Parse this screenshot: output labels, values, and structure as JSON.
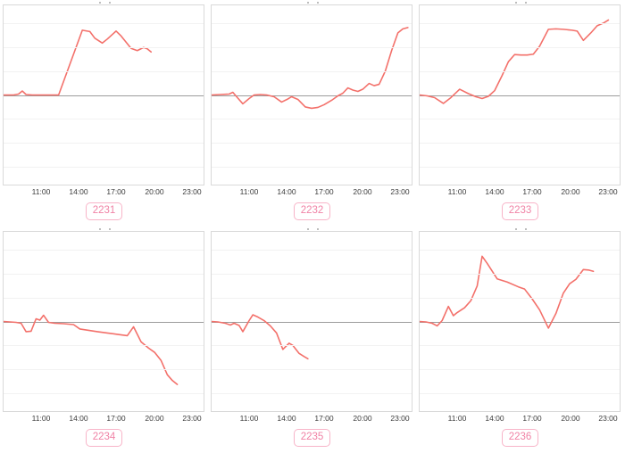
{
  "colors": {
    "line": "#f3706a",
    "zero_line": "#9b9b9b",
    "grid": "#f2f2f2",
    "panel_border": "#d9d9d9",
    "badge_border": "#f8b4c8",
    "badge_text": "#f082a5",
    "tick_text": "#3c3c3c"
  },
  "x_ticks": [
    "11:00",
    "14:00",
    "17:00",
    "20:00",
    "23:00"
  ],
  "chart_data": [
    {
      "type": "line",
      "title": "2231",
      "x_axis_ticks": [
        "11:00",
        "14:00",
        "17:00",
        "20:00",
        "23:00"
      ],
      "x_range_hours": [
        8,
        24
      ],
      "ylim": [
        -1,
        1
      ],
      "y_units": "relative (y axis unlabeled, zero baseline shown)",
      "x": [
        8,
        8.8,
        9.2,
        9.5,
        9.8,
        10.3,
        12.4,
        14.3,
        14.9,
        15.3,
        15.9,
        16.3,
        17.0,
        17.4,
        18.2,
        18.7,
        19.2,
        19.5,
        19.8
      ],
      "y": [
        0,
        0,
        0.01,
        0.045,
        0.005,
        0,
        0,
        0.73,
        0.715,
        0.64,
        0.585,
        0.63,
        0.72,
        0.665,
        0.525,
        0.5,
        0.535,
        0.52,
        0.485
      ]
    },
    {
      "type": "line",
      "title": "2232",
      "x_axis_ticks": [
        "11:00",
        "14:00",
        "17:00",
        "20:00",
        "23:00"
      ],
      "x_range_hours": [
        8,
        24
      ],
      "ylim": [
        -1,
        1
      ],
      "y_units": "relative (y axis unlabeled, zero baseline shown)",
      "x": [
        8,
        8.7,
        9.4,
        9.7,
        10.0,
        10.5,
        11.0,
        11.4,
        11.9,
        12.4,
        13.0,
        13.6,
        14.1,
        14.4,
        14.9,
        15.5,
        16.0,
        16.5,
        17.0,
        17.6,
        18.1,
        18.5,
        18.9,
        19.3,
        19.7,
        20.1,
        20.6,
        21.0,
        21.4,
        21.9,
        22.4,
        22.9,
        23.3,
        23.7
      ],
      "y": [
        0,
        0.005,
        0.01,
        0.03,
        -0.02,
        -0.1,
        -0.04,
        0,
        0.005,
        0,
        -0.02,
        -0.08,
        -0.045,
        -0.02,
        -0.05,
        -0.135,
        -0.15,
        -0.14,
        -0.11,
        -0.06,
        -0.01,
        0.02,
        0.08,
        0.055,
        0.04,
        0.065,
        0.13,
        0.105,
        0.12,
        0.27,
        0.5,
        0.7,
        0.745,
        0.76
      ]
    },
    {
      "type": "line",
      "title": "2233",
      "x_axis_ticks": [
        "11:00",
        "14:00",
        "17:00",
        "20:00",
        "23:00"
      ],
      "x_range_hours": [
        8,
        24
      ],
      "ylim": [
        -1,
        1
      ],
      "y_units": "relative (y axis unlabeled, zero baseline shown)",
      "x": [
        8,
        8.6,
        9.2,
        9.9,
        10.5,
        11.2,
        11.9,
        12.5,
        13.0,
        13.5,
        14.0,
        14.6,
        15.1,
        15.6,
        16.1,
        16.6,
        17.1,
        17.6,
        18.3,
        18.9,
        19.5,
        20.2,
        20.6,
        21.1,
        21.7,
        22.2,
        22.7,
        23.1
      ],
      "y": [
        0,
        -0.01,
        -0.03,
        -0.095,
        -0.03,
        0.065,
        0.015,
        -0.02,
        -0.04,
        -0.015,
        0.05,
        0.22,
        0.375,
        0.455,
        0.45,
        0.45,
        0.46,
        0.55,
        0.74,
        0.745,
        0.74,
        0.73,
        0.72,
        0.615,
        0.7,
        0.78,
        0.81,
        0.845
      ]
    },
    {
      "type": "line",
      "title": "2234",
      "x_axis_ticks": [
        "11:00",
        "14:00",
        "17:00",
        "20:00",
        "23:00"
      ],
      "x_range_hours": [
        8,
        24
      ],
      "ylim": [
        -1,
        1
      ],
      "y_units": "relative (y axis unlabeled, zero baseline shown)",
      "x": [
        8,
        8.5,
        9.0,
        9.4,
        9.8,
        10.2,
        10.6,
        10.9,
        11.2,
        11.6,
        12.1,
        12.8,
        13.6,
        14.1,
        14.8,
        15.5,
        16.3,
        17.1,
        17.9,
        18.4,
        19.0,
        19.6,
        20.1,
        20.6,
        21.1,
        21.5,
        21.9
      ],
      "y": [
        0,
        -0.005,
        -0.01,
        -0.02,
        -0.115,
        -0.11,
        0.03,
        0.015,
        0.07,
        -0.01,
        -0.02,
        -0.025,
        -0.035,
        -0.085,
        -0.1,
        -0.115,
        -0.13,
        -0.145,
        -0.16,
        -0.06,
        -0.23,
        -0.3,
        -0.35,
        -0.44,
        -0.6,
        -0.665,
        -0.71
      ]
    },
    {
      "type": "line",
      "title": "2235",
      "x_axis_ticks": [
        "11:00",
        "14:00",
        "17:00",
        "20:00",
        "23:00"
      ],
      "x_range_hours": [
        8,
        24
      ],
      "ylim": [
        -1,
        1
      ],
      "y_units": "relative (y axis unlabeled, zero baseline shown)",
      "x": [
        8,
        8.5,
        9.1,
        9.5,
        9.8,
        10.2,
        10.5,
        11.0,
        11.3,
        11.7,
        12.2,
        12.7,
        13.2,
        13.7,
        14.2,
        14.5,
        15.0,
        15.4,
        15.7
      ],
      "y": [
        0,
        -0.005,
        -0.02,
        -0.04,
        -0.02,
        -0.045,
        -0.115,
        0.01,
        0.075,
        0.05,
        0.01,
        -0.05,
        -0.13,
        -0.315,
        -0.245,
        -0.27,
        -0.36,
        -0.395,
        -0.42
      ]
    },
    {
      "type": "line",
      "title": "2236",
      "x_axis_ticks": [
        "11:00",
        "14:00",
        "17:00",
        "20:00",
        "23:00"
      ],
      "x_range_hours": [
        8,
        24
      ],
      "ylim": [
        -1,
        1
      ],
      "y_units": "relative (y axis unlabeled, zero baseline shown)",
      "x": [
        8,
        8.5,
        9.0,
        9.4,
        9.8,
        10.3,
        10.7,
        11.0,
        11.6,
        12.1,
        12.6,
        13.0,
        13.4,
        14.2,
        15.0,
        15.9,
        16.4,
        17.0,
        17.6,
        18.3,
        18.9,
        19.5,
        20.0,
        20.5,
        21.1,
        21.5,
        21.9
      ],
      "y": [
        0,
        -0.005,
        -0.02,
        -0.05,
        0.01,
        0.17,
        0.065,
        0.1,
        0.155,
        0.235,
        0.4,
        0.735,
        0.655,
        0.48,
        0.445,
        0.39,
        0.365,
        0.255,
        0.13,
        -0.075,
        0.09,
        0.32,
        0.425,
        0.475,
        0.585,
        0.58,
        0.565
      ]
    }
  ]
}
